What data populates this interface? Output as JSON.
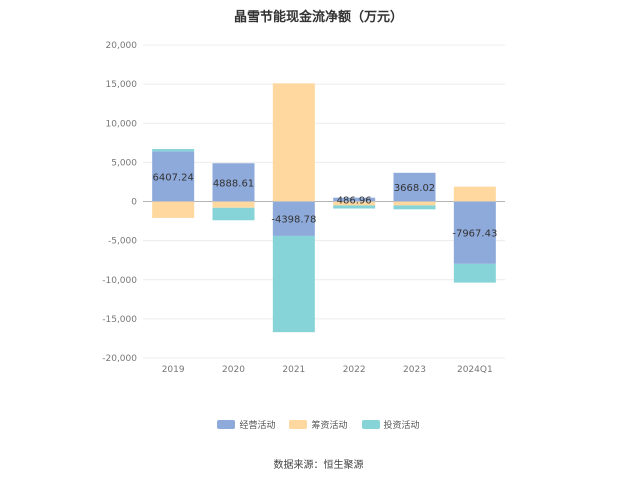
{
  "chart_data": {
    "type": "bar",
    "stacked": true,
    "title": "晶雪节能现金流净额（万元）",
    "categories": [
      "2019",
      "2020",
      "2021",
      "2022",
      "2023",
      "2024Q1"
    ],
    "series": [
      {
        "name": "经营活动",
        "color": "#8eaadb",
        "values": [
          6407.24,
          4888.61,
          -4398.78,
          486.96,
          3668.02,
          -7967.43
        ]
      },
      {
        "name": "筹资活动",
        "color": "#ffd8a0",
        "values": [
          -2100,
          -800,
          15100,
          -500,
          -500,
          1900
        ]
      },
      {
        "name": "投资活动",
        "color": "#86d4d8",
        "values": [
          300,
          -1600,
          -12300,
          -400,
          -500,
          -2400
        ]
      }
    ],
    "data_labels": [
      "6407.24",
      "4888.61",
      "-4398.78",
      "486.96",
      "3668.02",
      "-7967.43"
    ],
    "ylim": [
      -20000,
      20000
    ],
    "yticks": [
      20000,
      15000,
      10000,
      5000,
      0,
      -5000,
      -10000,
      -15000,
      -20000
    ],
    "ytick_labels": [
      "20,000",
      "15,000",
      "10,000",
      "5,000",
      "0",
      "-5,000",
      "-10,000",
      "-15,000",
      "-20,000"
    ],
    "grid": true,
    "legend_position": "bottom"
  },
  "source": "数据来源：恒生聚源"
}
